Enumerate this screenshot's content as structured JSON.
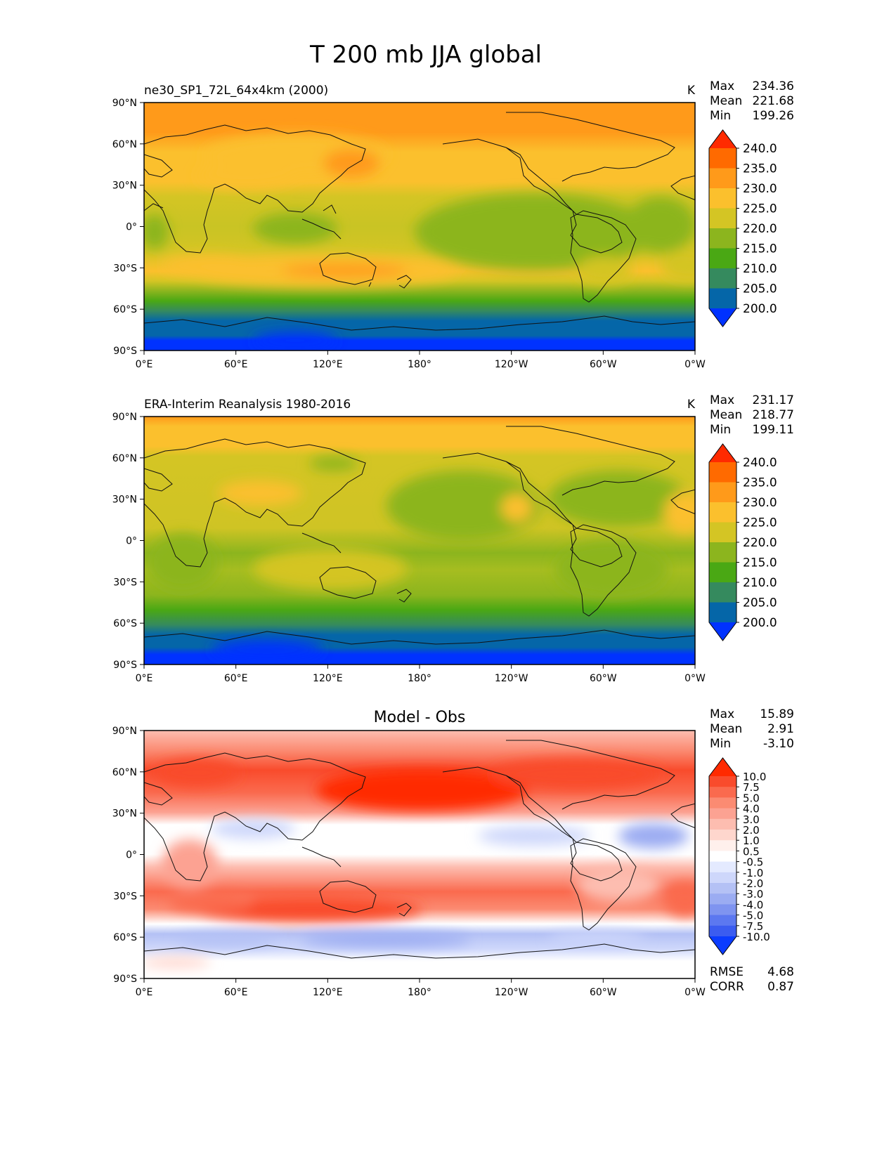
{
  "title": "T 200 mb JJA global",
  "axes": {
    "lat_ticks": [
      "90°N",
      "60°N",
      "30°N",
      "0°",
      "30°S",
      "60°S",
      "90°S"
    ],
    "lon_ticks": [
      "0°E",
      "60°E",
      "120°E",
      "180°",
      "120°W",
      "60°W",
      "0°W"
    ]
  },
  "panels": [
    {
      "title": "ne30_SP1_72L_64x4km (2000)",
      "units": "K",
      "stats": [
        {
          "label": "Max",
          "value": "234.36"
        },
        {
          "label": "Mean",
          "value": "221.68"
        },
        {
          "label": "Min",
          "value": "199.26"
        }
      ]
    },
    {
      "title": "ERA-Interim Reanalysis 1980-2016",
      "units": "K",
      "stats": [
        {
          "label": "Max",
          "value": "231.17"
        },
        {
          "label": "Mean",
          "value": "218.77"
        },
        {
          "label": "Min",
          "value": "199.11"
        }
      ]
    },
    {
      "title": "Model - Obs",
      "units": "",
      "stats": [
        {
          "label": "Max",
          "value": "15.89"
        },
        {
          "label": "Mean",
          "value": "2.91"
        },
        {
          "label": "Min",
          "value": "-3.10"
        }
      ],
      "extra_stats": [
        {
          "label": "RMSE",
          "value": "4.68"
        },
        {
          "label": "CORR",
          "value": "0.87"
        }
      ]
    }
  ],
  "colorbars": {
    "temperature": {
      "levels": [
        "240.0",
        "235.0",
        "230.0",
        "225.0",
        "220.0",
        "215.0",
        "210.0",
        "205.0",
        "200.0"
      ],
      "colors_top_to_bottom": [
        "#ff2a00",
        "#ff6a00",
        "#ff9a1a",
        "#fbc02d",
        "#d4c524",
        "#8cb51e",
        "#4aa814",
        "#358a5e",
        "#0566a8",
        "#0032ff"
      ]
    },
    "difference": {
      "levels": [
        "10.0",
        "7.5",
        "5.0",
        "4.0",
        "3.0",
        "2.0",
        "1.0",
        "0.5",
        "-0.5",
        "-1.0",
        "-2.0",
        "-3.0",
        "-4.0",
        "-5.0",
        "-7.5",
        "-10.0"
      ],
      "colors_top_to_bottom": [
        "#ff2a00",
        "#f94b2c",
        "#fa6a4e",
        "#fb8b72",
        "#fca292",
        "#fdbdb0",
        "#fed6cd",
        "#fff0ec",
        "#ffffff",
        "#e4eaff",
        "#ced7fb",
        "#b4c1f5",
        "#9bacf2",
        "#7f94f0",
        "#5c78f0",
        "#3b5cf0",
        "#0b3cff"
      ]
    }
  },
  "chart_data": [
    {
      "type": "heatmap",
      "title": "ne30_SP1_72L_64x4km (2000)",
      "units": "K",
      "x_range": [
        0,
        360
      ],
      "y_range": [
        -90,
        90
      ],
      "latitude_profile_K": {
        "lat": [
          90,
          75,
          60,
          45,
          30,
          15,
          0,
          -15,
          -30,
          -45,
          -55,
          -65,
          -75,
          -85
        ],
        "value": [
          231,
          230,
          228,
          226,
          224,
          221,
          219,
          222,
          225,
          218,
          214,
          209,
          204,
          199
        ]
      },
      "max": 234.36,
      "mean": 221.68,
      "min": 199.26
    },
    {
      "type": "heatmap",
      "title": "ERA-Interim Reanalysis 1980-2016",
      "units": "K",
      "x_range": [
        0,
        360
      ],
      "y_range": [
        -90,
        90
      ],
      "latitude_profile_K": {
        "lat": [
          90,
          75,
          60,
          45,
          30,
          15,
          0,
          -15,
          -30,
          -45,
          -55,
          -65,
          -75,
          -85
        ],
        "value": [
          230,
          227,
          222,
          221,
          220,
          219,
          217,
          220,
          221,
          216,
          213,
          209,
          204,
          199
        ]
      },
      "max": 231.17,
      "mean": 218.77,
      "min": 199.11
    },
    {
      "type": "heatmap",
      "title": "Model - Obs",
      "units": "",
      "x_range": [
        0,
        360
      ],
      "y_range": [
        -90,
        90
      ],
      "latitude_profile": {
        "lat": [
          90,
          75,
          60,
          45,
          30,
          15,
          0,
          -15,
          -30,
          -45,
          -55,
          -65,
          -75,
          -85
        ],
        "value": [
          1.5,
          4,
          6,
          5,
          3,
          -0.5,
          0,
          2,
          4,
          3,
          0.5,
          -1.5,
          -0.5,
          0
        ]
      },
      "max": 15.89,
      "mean": 2.91,
      "min": -3.1,
      "rmse": 4.68,
      "corr": 0.87
    }
  ]
}
